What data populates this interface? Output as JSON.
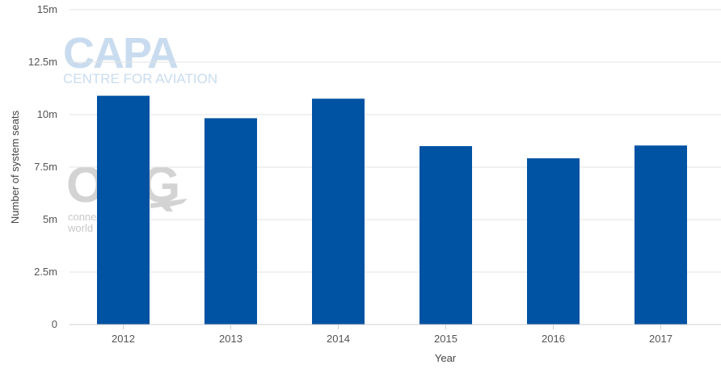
{
  "watermarks": {
    "capa": "CAPA",
    "capa_sub": "CENTRE FOR AVIATION",
    "oag": "OAG",
    "oag_line1": "conne",
    "oag_line2": "world"
  },
  "colors": {
    "bar": "#0052a3"
  },
  "chart_data": {
    "type": "bar",
    "categories": [
      "2012",
      "2013",
      "2014",
      "2015",
      "2016",
      "2017"
    ],
    "values": [
      10.9,
      9.83,
      10.76,
      8.5,
      7.92,
      8.53
    ],
    "value_unit": "millions",
    "xlabel": "Year",
    "ylabel": "Number of system seats",
    "ylim": [
      0,
      15
    ],
    "yticks": [
      0,
      2.5,
      5,
      7.5,
      10,
      12.5,
      15
    ],
    "ytick_labels": [
      "0",
      "2.5m",
      "5m",
      "7.5m",
      "10m",
      "12.5m",
      "15m"
    ],
    "grid": true
  }
}
